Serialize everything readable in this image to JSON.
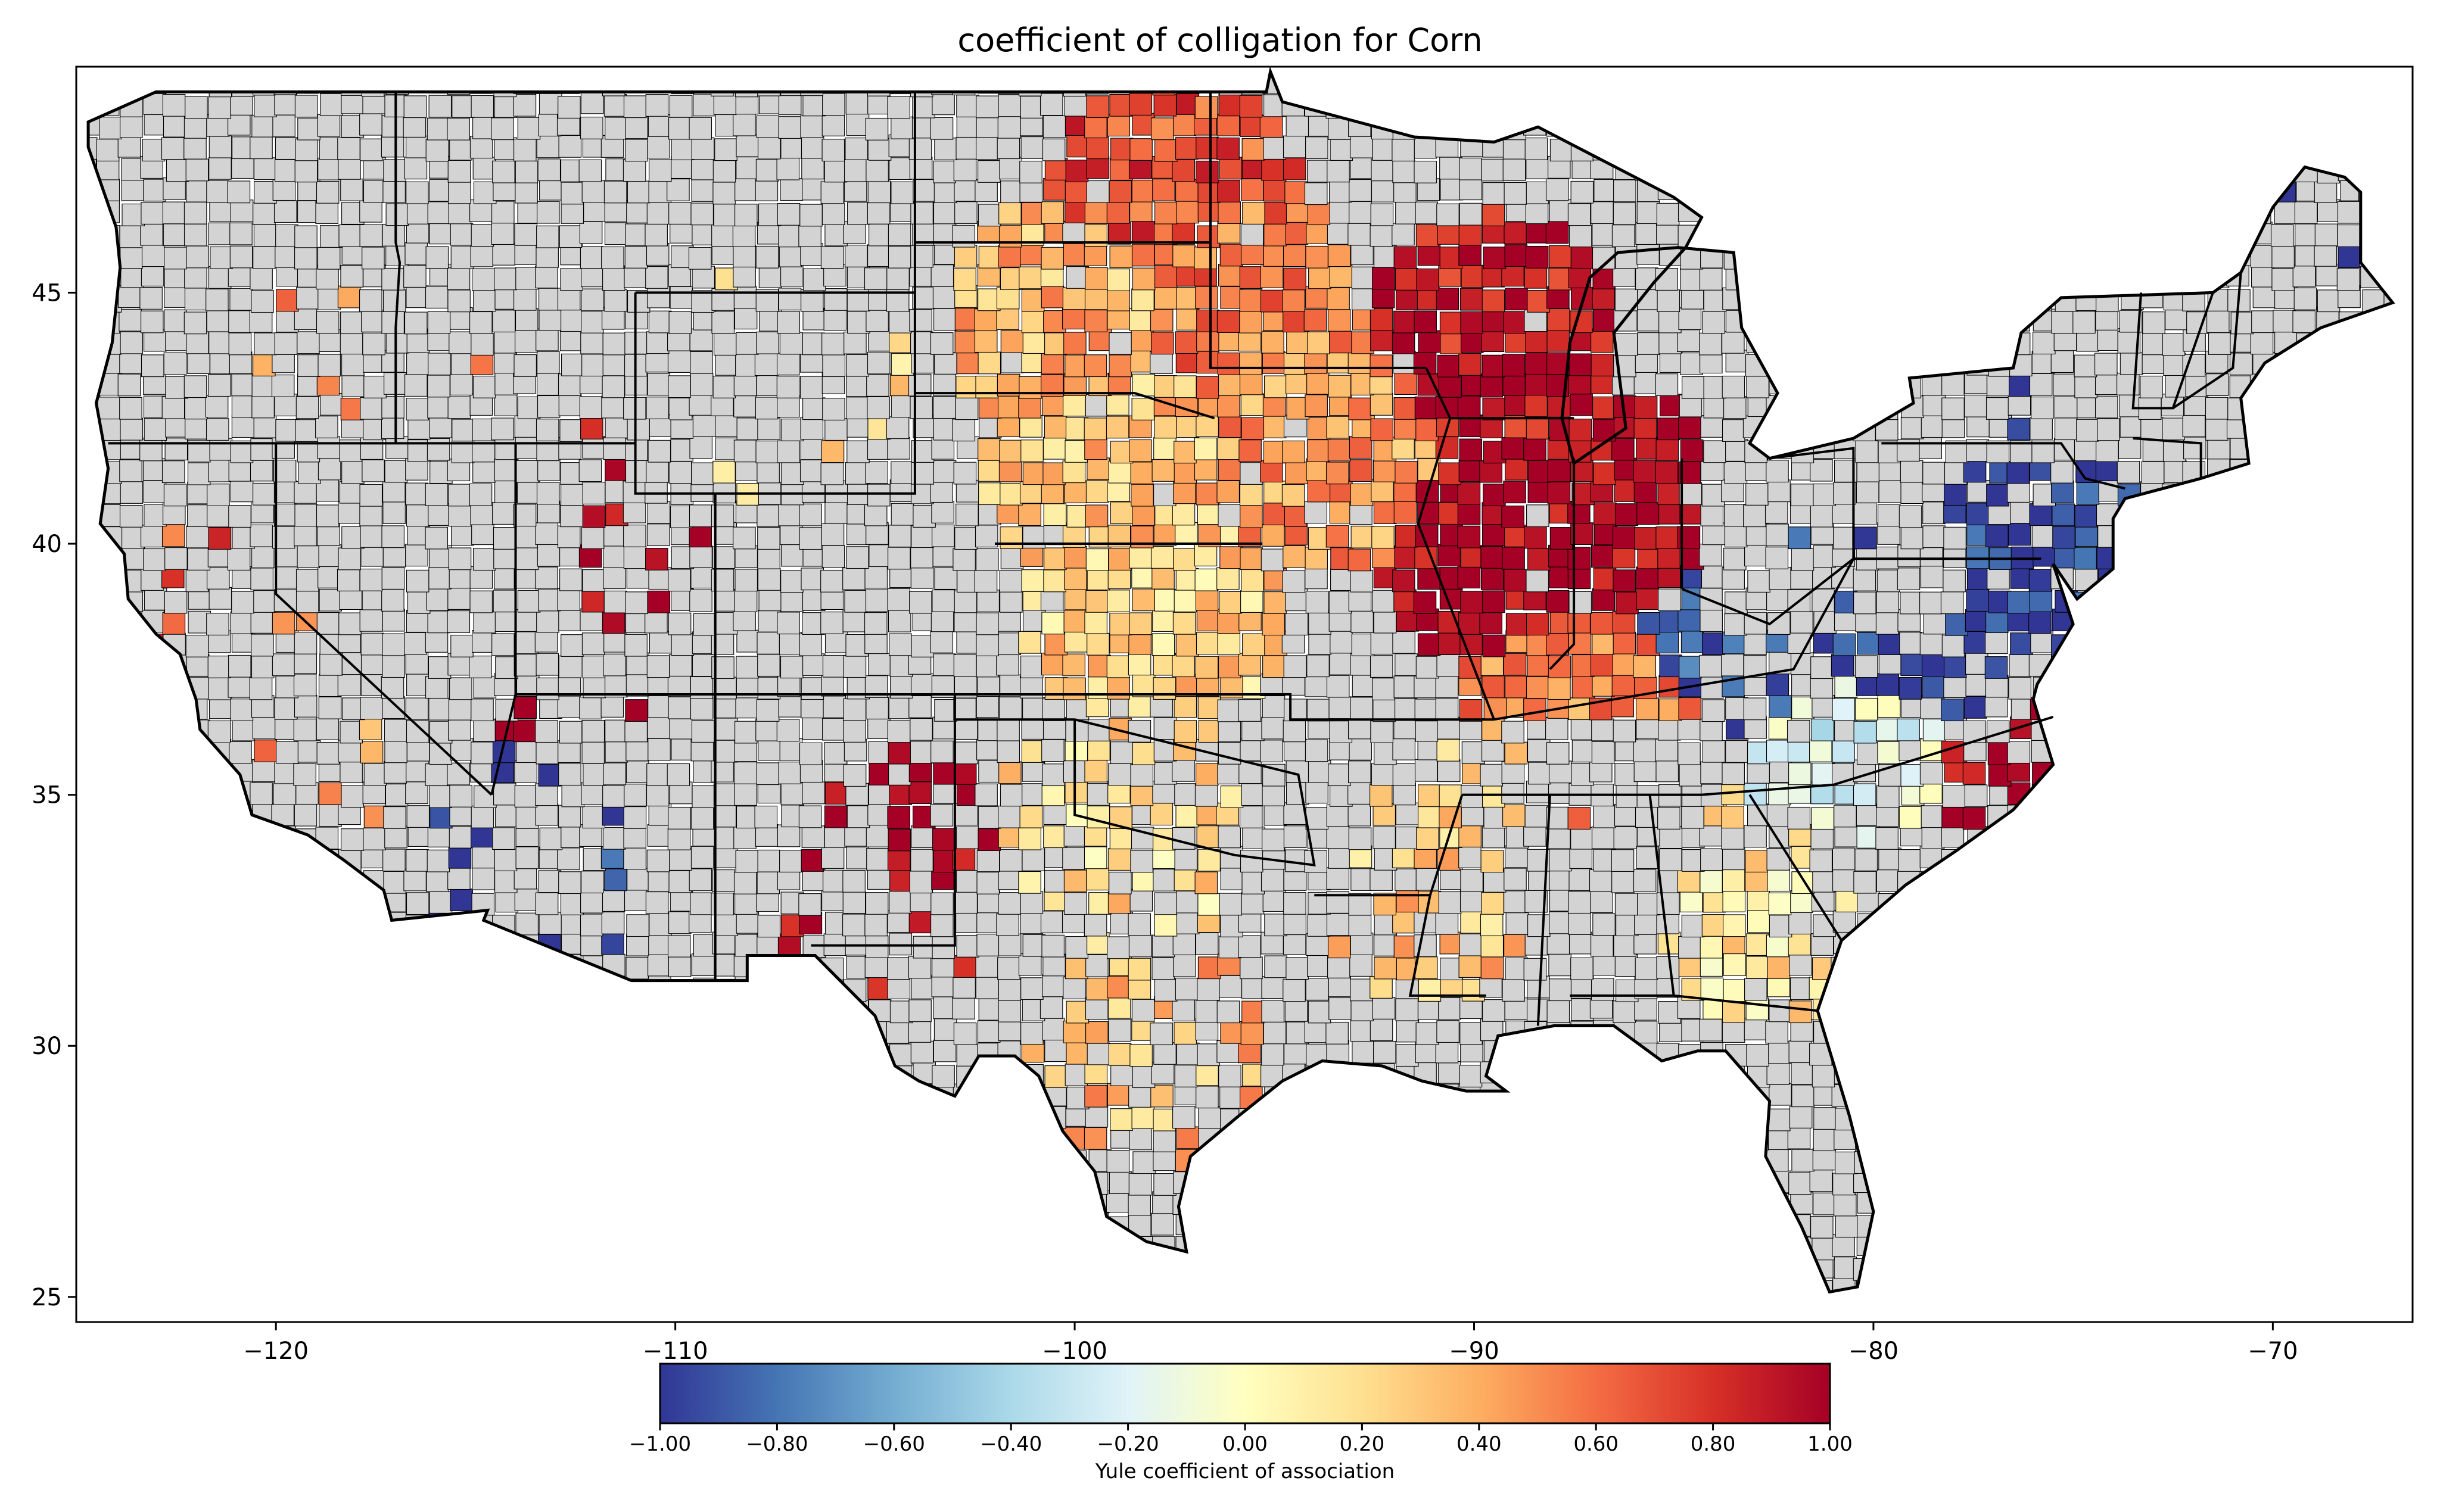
{
  "title": "coefficient of colligation for Corn",
  "map": {
    "x_range": [
      -125,
      -66.5
    ],
    "y_range": [
      24.5,
      49.5
    ],
    "x_ticks": [
      -120,
      -110,
      -100,
      -90,
      -80,
      -70
    ],
    "y_ticks": [
      25,
      30,
      35,
      40,
      45
    ],
    "x_tick_labels": [
      "−120",
      "−110",
      "−100",
      "−90",
      "−80",
      "−70"
    ],
    "y_tick_labels": [
      "25",
      "30",
      "35",
      "40",
      "45"
    ],
    "no_data_color": "#d3d3d3",
    "boundary_color": "#000000"
  },
  "colorbar": {
    "label": "Yule coefficient of association",
    "min": -1,
    "max": 1,
    "ticks": [
      -1,
      -0.8,
      -0.6,
      -0.4,
      -0.2,
      0,
      0.2,
      0.4,
      0.6,
      0.8,
      1
    ],
    "tick_labels": [
      "−1.00",
      "−0.80",
      "−0.60",
      "−0.40",
      "−0.20",
      "0.00",
      "0.20",
      "0.40",
      "0.60",
      "0.80",
      "1.00"
    ],
    "colormap": "RdYlBu_r",
    "color_stops": [
      "#313695",
      "#4575b4",
      "#74add1",
      "#abd9e9",
      "#e0f3f8",
      "#ffffbf",
      "#fee090",
      "#fdae61",
      "#f46d43",
      "#d73027",
      "#a50026"
    ]
  },
  "chart_data": {
    "type": "choropleth",
    "variable": "Yule coefficient of association",
    "regions": [
      {
        "lon": -97.5,
        "lat": 46.8,
        "value": 0.7
      },
      {
        "lon": -96.5,
        "lat": 45.3,
        "value": 0.55
      },
      {
        "lon": -100.0,
        "lat": 44.5,
        "value": 0.35
      },
      {
        "lon": -99.0,
        "lat": 41.5,
        "value": 0.3
      },
      {
        "lon": -98.0,
        "lat": 38.5,
        "value": 0.25
      },
      {
        "lon": -93.5,
        "lat": 42.0,
        "value": 0.45
      },
      {
        "lon": -89.5,
        "lat": 44.0,
        "value": 0.9
      },
      {
        "lon": -89.2,
        "lat": 40.0,
        "value": 1.0
      },
      {
        "lon": -86.0,
        "lat": 40.3,
        "value": 1.0
      },
      {
        "lon": -83.5,
        "lat": 38.5,
        "value": -0.9
      },
      {
        "lon": -87.0,
        "lat": 37.0,
        "value": 0.5
      },
      {
        "lon": -78.5,
        "lat": 38.0,
        "value": -1.0
      },
      {
        "lon": -76.0,
        "lat": 40.8,
        "value": -1.0
      },
      {
        "lon": -80.0,
        "lat": 35.5,
        "value": -0.2
      },
      {
        "lon": -83.0,
        "lat": 32.5,
        "value": 0.15
      },
      {
        "lon": -98.5,
        "lat": 30.0,
        "value": 0.35
      },
      {
        "lon": -99.0,
        "lat": 34.0,
        "value": 0.2
      },
      {
        "lon": -91.0,
        "lat": 33.5,
        "value": 0.3
      },
      {
        "lon": -121.5,
        "lat": 38.0,
        "value": 0.7
      },
      {
        "lon": -119.5,
        "lat": 36.0,
        "value": 0.5
      },
      {
        "lon": -111.5,
        "lat": 40.5,
        "value": 1.0
      },
      {
        "lon": -112.5,
        "lat": 38.2,
        "value": 1.0
      },
      {
        "lon": -104.5,
        "lat": 33.3,
        "value": 1.0
      },
      {
        "lon": -69.0,
        "lat": 46.5,
        "value": -1.0
      },
      {
        "lon": -113.5,
        "lat": 33.5,
        "value": -1.0
      },
      {
        "lon": -76.2,
        "lat": 35.3,
        "value": 1.0
      },
      {
        "lon": -117.5,
        "lat": 44.0,
        "value": 0.55
      },
      {
        "lon": -107.5,
        "lat": 43.5,
        "value": 0.3
      }
    ]
  }
}
